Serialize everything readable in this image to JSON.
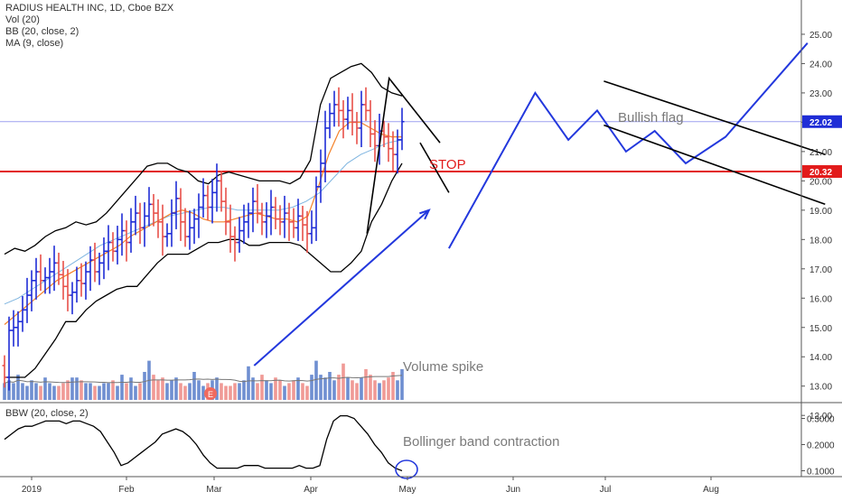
{
  "header": {
    "symbol_line": "RADIUS HEALTH INC, 1D, Cboe BZX",
    "indicators": [
      "Vol (20)",
      "BB (20, close, 2)",
      "MA (9, close)"
    ],
    "lower_indicator": "BBW (20, close, 2)"
  },
  "annotations": {
    "stop": "STOP",
    "bullish_flag": "Bullish flag",
    "volume_spike": "Volume spike",
    "bb_contraction": "Bollinger band contraction",
    "earnings_marker": "E"
  },
  "colors": {
    "up_bar": "#1f2dd6",
    "down_bar": "#e8504a",
    "vol_up": "#6f8fd1",
    "vol_down": "#f09a96",
    "bb": "#000000",
    "ma": "#f4822a",
    "bb_basis": "#7fb5e0",
    "stop_line": "#e21b1b",
    "price_line": "#9ea0f0",
    "drawing_blue": "#2338dd",
    "annotation_gray": "#7a7a7a"
  },
  "chart_data": [
    {
      "type": "ohlc",
      "title": "RADIUS HEALTH INC, 1D, Cboe BZX",
      "x_ticks": [
        "2019",
        "Feb",
        "Mar",
        "Apr",
        "May",
        "Jun",
        "Jul",
        "Aug"
      ],
      "y_ticks": [
        12.0,
        13.0,
        14.0,
        15.0,
        16.0,
        17.0,
        18.0,
        19.0,
        20.0,
        21.0,
        22.0,
        23.0,
        24.0,
        25.0
      ],
      "ylim": [
        11.8,
        25.4
      ],
      "price_labels": {
        "last": "22.02",
        "stop": "20.32"
      },
      "last_price": 22.02,
      "stop_level": 20.32,
      "series": [
        {
          "name": "price",
          "closes": [
            13.3,
            14.9,
            15.0,
            15.2,
            15.6,
            16.1,
            16.6,
            16.9,
            16.6,
            16.7,
            16.9,
            17.2,
            16.8,
            16.4,
            16.1,
            16.2,
            16.6,
            16.5,
            16.9,
            17.3,
            16.9,
            17.2,
            17.6,
            17.9,
            17.6,
            18.0,
            18.3,
            17.9,
            18.6,
            18.9,
            18.4,
            18.8,
            19.2,
            18.9,
            18.6,
            18.1,
            18.2,
            18.9,
            19.4,
            18.6,
            18.1,
            18.4,
            18.7,
            19.1,
            19.5,
            19.1,
            19.6,
            20.0,
            19.3,
            18.6,
            18.1,
            17.9,
            18.3,
            18.6,
            18.9,
            19.3,
            18.9,
            18.6,
            18.8,
            19.1,
            18.7,
            18.6,
            18.9,
            18.6,
            18.4,
            18.8,
            18.5,
            18.2,
            18.4,
            19.8,
            20.6,
            21.8,
            22.3,
            22.6,
            22.4,
            22.1,
            22.4,
            22.0,
            21.8,
            22.6,
            22.4,
            21.6,
            21.2,
            21.7,
            21.5,
            21.1,
            20.9,
            21.4,
            22.02
          ]
        },
        {
          "name": "BB upper",
          "values": [
            17.5,
            17.7,
            17.6,
            17.8,
            18.1,
            18.3,
            18.4,
            18.6,
            18.5,
            18.6,
            18.9,
            19.3,
            19.7,
            20.1,
            20.5,
            20.6,
            20.6,
            20.4,
            20.3,
            20.0,
            19.9,
            20.2,
            20.3,
            20.2,
            20.1,
            20.0,
            20.0,
            20.0,
            19.9,
            20.1,
            20.7,
            22.6,
            23.5,
            23.7,
            23.9,
            24.0,
            23.7,
            23.2,
            23.0,
            22.9
          ]
        },
        {
          "name": "BB lower",
          "values": [
            13.3,
            13.3,
            13.3,
            13.6,
            14.1,
            14.6,
            15.2,
            15.2,
            15.6,
            15.9,
            16.1,
            16.3,
            16.4,
            16.4,
            16.8,
            17.2,
            17.5,
            17.5,
            17.5,
            17.7,
            17.9,
            17.9,
            18.0,
            18.0,
            17.8,
            17.8,
            17.9,
            17.9,
            17.9,
            17.8,
            17.5,
            17.2,
            16.9,
            16.9,
            17.2,
            17.6,
            18.6,
            19.2,
            20.0,
            20.6
          ]
        },
        {
          "name": "BB basis",
          "values": [
            15.8,
            16.0,
            16.3,
            16.6,
            16.9,
            17.2,
            17.5,
            17.8,
            18.0,
            18.2,
            18.4,
            18.6,
            18.8,
            18.9,
            19.0,
            19.1,
            19.1,
            19.0,
            19.0,
            19.0,
            19.0,
            19.1,
            19.3,
            19.6,
            20.1,
            20.6,
            20.9,
            21.1,
            21.3,
            21.4
          ]
        },
        {
          "name": "MA",
          "values": [
            15.1,
            15.4,
            15.7,
            16.0,
            16.3,
            16.6,
            16.8,
            17.0,
            17.2,
            17.4,
            17.6,
            17.8,
            18.1,
            18.3,
            18.5,
            18.7,
            18.9,
            19.0,
            18.9,
            18.7,
            18.6,
            18.6,
            18.7,
            18.8,
            18.9,
            18.8,
            18.7,
            18.7,
            18.6,
            18.8,
            19.8,
            20.9,
            21.7,
            22.0,
            22.0,
            21.8,
            21.6,
            21.5,
            21.5
          ]
        }
      ],
      "drawings": {
        "bullish_flag_path": [
          [
            20.3,
            17.7
          ],
          [
            24.2,
            23.0
          ],
          [
            25.7,
            21.4
          ],
          [
            27.0,
            22.4
          ],
          [
            28.3,
            21.0
          ],
          [
            29.6,
            21.7
          ],
          [
            31.0,
            20.6
          ],
          [
            32.8,
            21.5
          ],
          [
            36.5,
            24.7
          ]
        ],
        "flag_upper_channel": [
          [
            27.3,
            23.4
          ],
          [
            37.3,
            20.9
          ]
        ],
        "flag_lower_channel": [
          [
            27.3,
            21.9
          ],
          [
            37.3,
            19.2
          ]
        ],
        "trend_arrow": [
          [
            11.5,
            13.7
          ],
          [
            19.4,
            19.0
          ]
        ],
        "triangle_upper": [
          [
            16.6,
            18.2
          ],
          [
            17.6,
            23.5
          ],
          [
            19.9,
            21.3
          ]
        ],
        "triangle_lower_channel": [
          [
            19.0,
            21.3
          ],
          [
            20.3,
            19.6
          ]
        ]
      }
    },
    {
      "type": "bar",
      "title": "Vol (20)",
      "bars": [
        6,
        7,
        6,
        9,
        6,
        5,
        7,
        6,
        5,
        8,
        6,
        5,
        5,
        6,
        7,
        8,
        8,
        7,
        6,
        6,
        5,
        5,
        6,
        6,
        7,
        5,
        9,
        6,
        8,
        5,
        6,
        10,
        14,
        9,
        7,
        8,
        6,
        7,
        8,
        6,
        5,
        6,
        10,
        7,
        5,
        6,
        7,
        8,
        6,
        5,
        5,
        6,
        6,
        7,
        12,
        8,
        6,
        9,
        7,
        6,
        8,
        7,
        5,
        6,
        7,
        8,
        6,
        5,
        9,
        14,
        9,
        8,
        10,
        7,
        9,
        13,
        8,
        7,
        6,
        8,
        11,
        9,
        7,
        6,
        7,
        8,
        10,
        7,
        11
      ],
      "annotation": "Volume spike"
    },
    {
      "type": "line",
      "title": "BBW (20, close, 2)",
      "y_ticks": [
        0.1,
        0.2,
        0.3
      ],
      "ylim": [
        0.08,
        0.32
      ],
      "values": [
        0.22,
        0.24,
        0.26,
        0.27,
        0.27,
        0.28,
        0.29,
        0.29,
        0.29,
        0.28,
        0.29,
        0.29,
        0.28,
        0.27,
        0.25,
        0.21,
        0.17,
        0.12,
        0.13,
        0.15,
        0.17,
        0.19,
        0.21,
        0.24,
        0.25,
        0.26,
        0.25,
        0.23,
        0.2,
        0.16,
        0.13,
        0.11,
        0.11,
        0.11,
        0.11,
        0.12,
        0.12,
        0.12,
        0.11,
        0.11,
        0.11,
        0.11,
        0.11,
        0.12,
        0.11,
        0.11,
        0.12,
        0.22,
        0.29,
        0.31,
        0.31,
        0.3,
        0.27,
        0.24,
        0.2,
        0.17,
        0.13,
        0.11,
        0.1
      ]
    }
  ]
}
